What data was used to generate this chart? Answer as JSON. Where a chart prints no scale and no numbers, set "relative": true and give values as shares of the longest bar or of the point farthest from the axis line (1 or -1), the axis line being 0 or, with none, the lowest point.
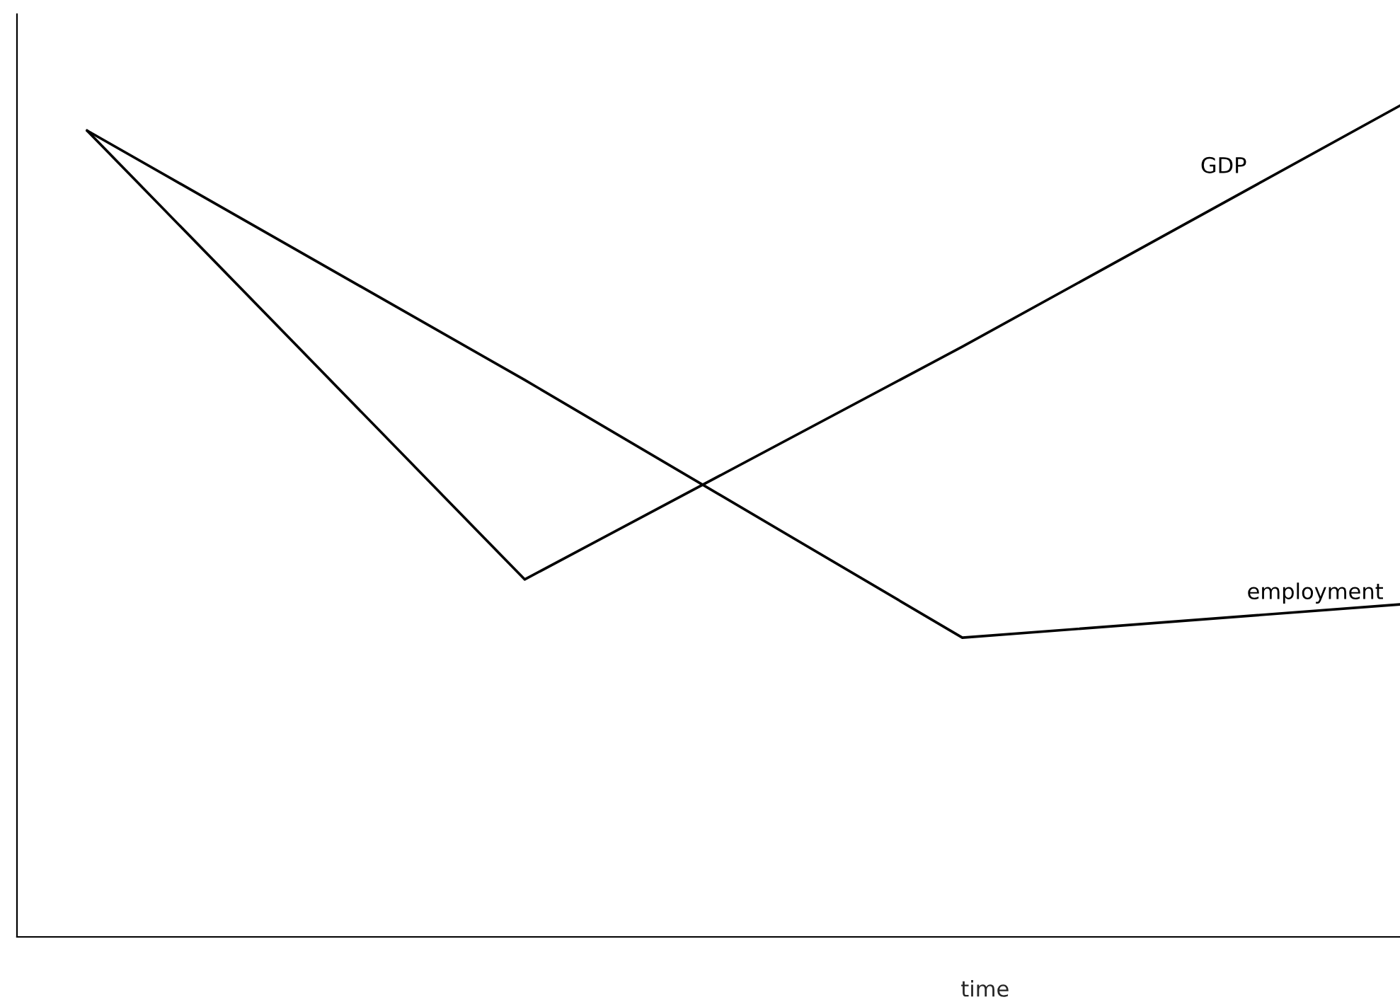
{
  "chart_data": {
    "type": "line",
    "relative": true,
    "xlabel": "time",
    "categories": [
      null,
      null,
      null,
      null
    ],
    "series": [
      {
        "name": "GDP",
        "color": "#000000",
        "values": [
          0.97,
          0.43,
          0.71,
          1.0
        ]
      },
      {
        "name": "employment",
        "color": "#000000",
        "values": [
          0.97,
          0.67,
          0.36,
          0.4
        ]
      }
    ],
    "marker": "none",
    "line_style": "solid"
  }
}
